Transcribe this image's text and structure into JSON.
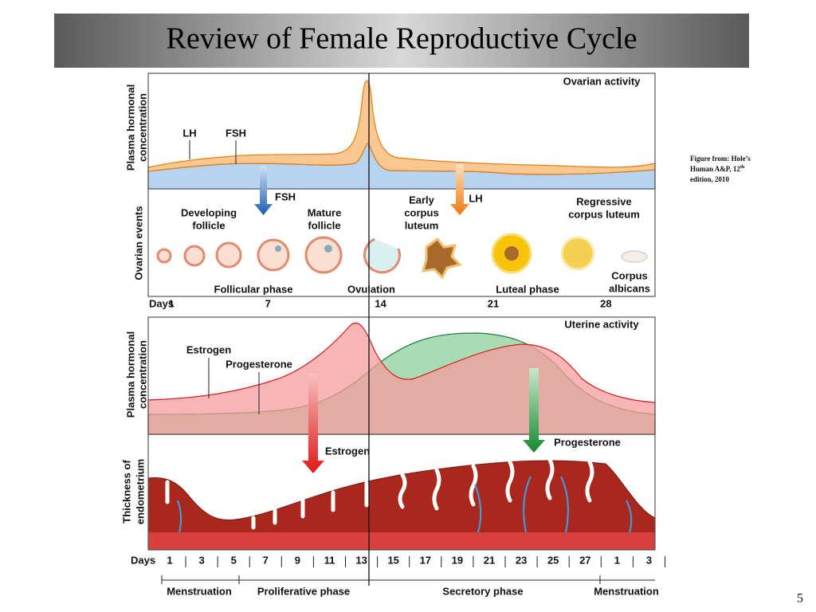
{
  "title": "Review of Female Reproductive Cycle",
  "citation": {
    "lines": [
      "Figure from: Hole’s",
      "Human A&P, 12",
      "edition, 2010"
    ],
    "superscript": "th"
  },
  "page_number": 5,
  "ovarian": {
    "y_label": [
      "Plasma hormonal",
      "concentration"
    ],
    "heading": "Ovarian activity",
    "curves": [
      "LH",
      "FSH"
    ],
    "events_label": "Ovarian events",
    "arrows": [
      "FSH",
      "LH"
    ],
    "stages": [
      [
        "Developing",
        "follicle"
      ],
      [
        "Mature",
        "follicle"
      ],
      [
        "Early",
        "corpus",
        "luteum"
      ],
      [
        "Regressive",
        "corpus luteum"
      ],
      [
        "Corpus",
        "albicans"
      ]
    ],
    "phases": [
      "Follicular phase",
      "Ovulation",
      "Luteal phase"
    ],
    "days_label": "Days",
    "days": [
      1,
      7,
      14,
      21,
      28
    ]
  },
  "uterine": {
    "y_label": [
      "Plasma hormonal",
      "concentration"
    ],
    "heading": "Uterine activity",
    "curves": [
      "Estrogen",
      "Progesterone"
    ],
    "arrows": [
      "Estrogen",
      "Progesterone"
    ],
    "thickness_label": [
      "Thickness of",
      "endometrium"
    ],
    "days_label": "Days",
    "days": [
      1,
      3,
      5,
      7,
      9,
      11,
      13,
      15,
      17,
      19,
      21,
      23,
      25,
      27,
      1,
      3
    ],
    "phases": [
      "Menstruation",
      "Proliferative phase",
      "Secretory phase",
      "Menstruation"
    ]
  }
}
